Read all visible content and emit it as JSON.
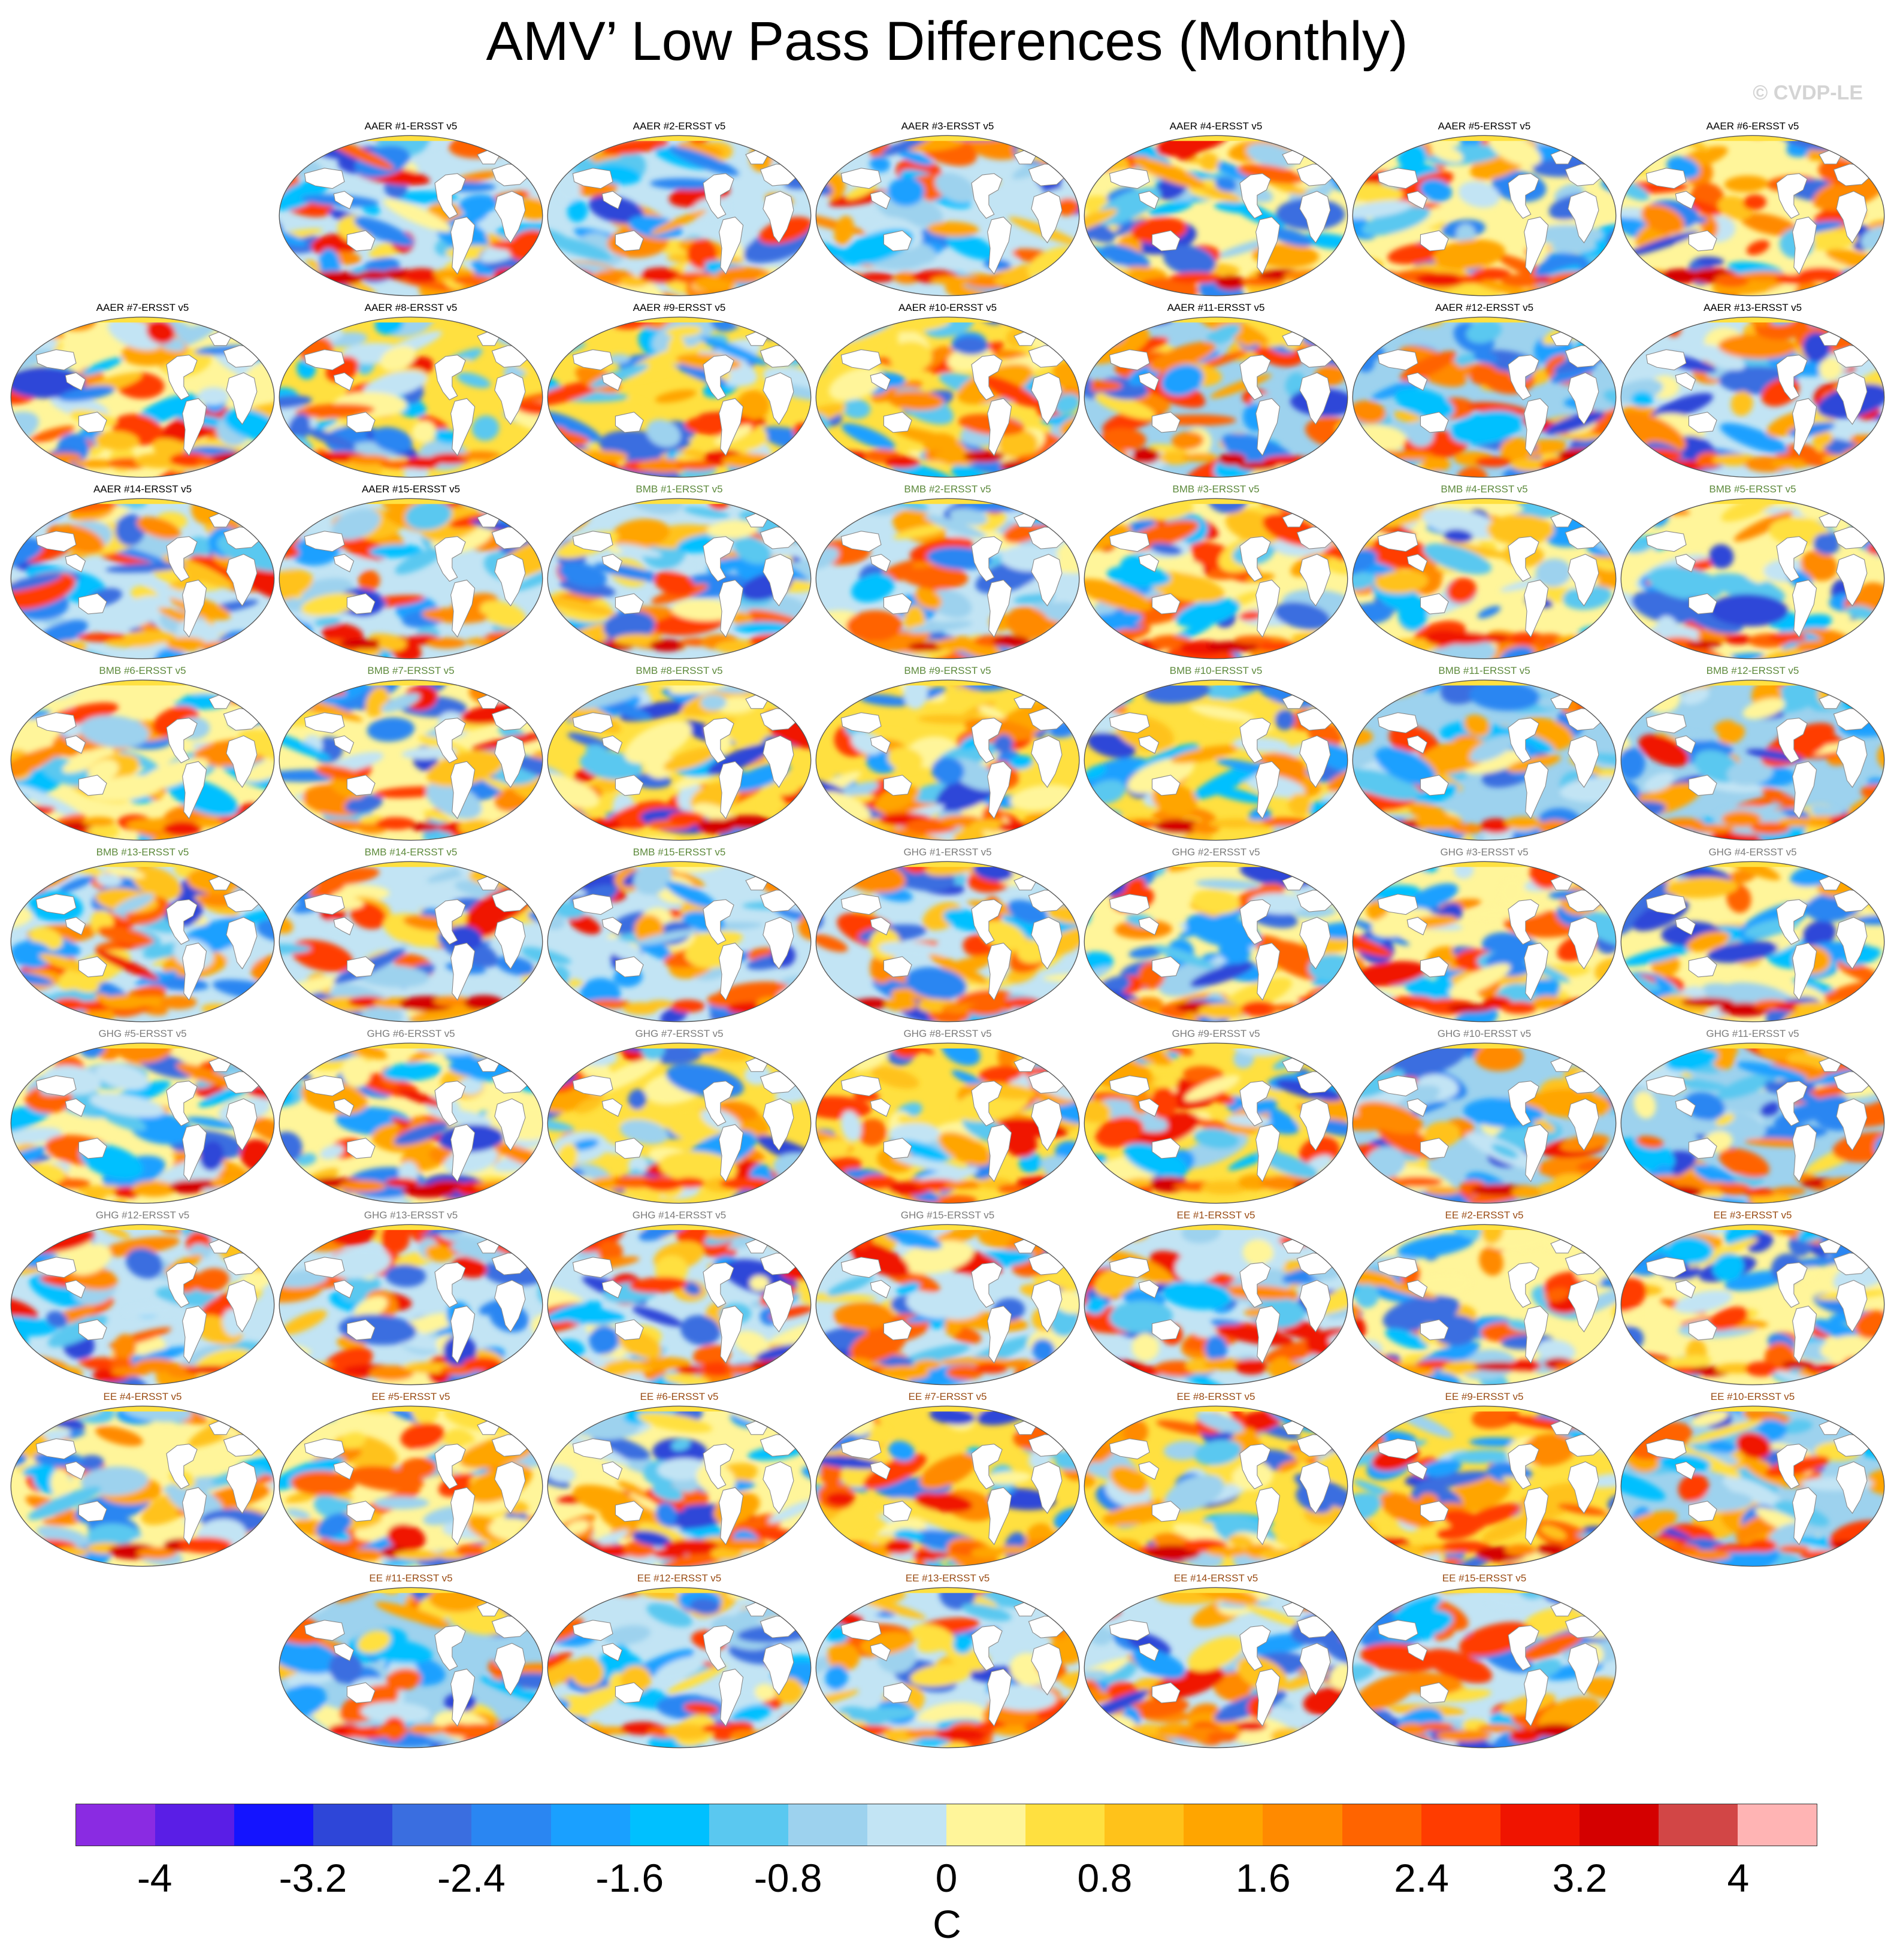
{
  "title": "AMV’ Low Pass Differences (Monthly)",
  "watermark": "© CVDP-LE",
  "panel_rows": [
    [
      null,
      "AAER #1-ERSST v5",
      "AAER #2-ERSST v5",
      "AAER #3-ERSST v5",
      "AAER #4-ERSST v5",
      "AAER #5-ERSST v5",
      "AAER #6-ERSST v5"
    ],
    [
      "AAER #7-ERSST v5",
      "AAER #8-ERSST v5",
      "AAER #9-ERSST v5",
      "AAER #10-ERSST v5",
      "AAER #11-ERSST v5",
      "AAER #12-ERSST v5",
      "AAER #13-ERSST v5"
    ],
    [
      "AAER #14-ERSST v5",
      "AAER #15-ERSST v5",
      "BMB #1-ERSST v5",
      "BMB #2-ERSST v5",
      "BMB #3-ERSST v5",
      "BMB #4-ERSST v5",
      "BMB #5-ERSST v5"
    ],
    [
      "BMB #6-ERSST v5",
      "BMB #7-ERSST v5",
      "BMB #8-ERSST v5",
      "BMB #9-ERSST v5",
      "BMB #10-ERSST v5",
      "BMB #11-ERSST v5",
      "BMB #12-ERSST v5"
    ],
    [
      "BMB #13-ERSST v5",
      "BMB #14-ERSST v5",
      "BMB #15-ERSST v5",
      "GHG #1-ERSST v5",
      "GHG #2-ERSST v5",
      "GHG #3-ERSST v5",
      "GHG #4-ERSST v5"
    ],
    [
      "GHG #5-ERSST v5",
      "GHG #6-ERSST v5",
      "GHG #7-ERSST v5",
      "GHG #8-ERSST v5",
      "GHG #9-ERSST v5",
      "GHG #10-ERSST v5",
      "GHG #11-ERSST v5"
    ],
    [
      "GHG #12-ERSST v5",
      "GHG #13-ERSST v5",
      "GHG #14-ERSST v5",
      "GHG #15-ERSST v5",
      "EE #1-ERSST v5",
      "EE #2-ERSST v5",
      "EE #3-ERSST v5"
    ],
    [
      "EE #4-ERSST v5",
      "EE #5-ERSST v5",
      "EE #6-ERSST v5",
      "EE #7-ERSST v5",
      "EE #8-ERSST v5",
      "EE #9-ERSST v5",
      "EE #10-ERSST v5"
    ],
    [
      null,
      "EE #11-ERSST v5",
      "EE #12-ERSST v5",
      "EE #13-ERSST v5",
      "EE #14-ERSST v5",
      "EE #15-ERSST v5",
      null
    ]
  ],
  "colorbar": {
    "colors": [
      "#8a2be2",
      "#5a1ee6",
      "#1414ff",
      "#2e46d8",
      "#3a6ee0",
      "#2a86f2",
      "#1aa0ff",
      "#00c0ff",
      "#5ac8f0",
      "#9dd2ee",
      "#c2e4f4",
      "#fff59a",
      "#ffe040",
      "#ffc21a",
      "#ffa500",
      "#ff8a00",
      "#ff6400",
      "#ff3c00",
      "#f01400",
      "#d40000",
      "#d24646",
      "#ffb4b4"
    ],
    "tick_labels": [
      "-4",
      "-3.2",
      "-2.4",
      "-1.6",
      "-0.8",
      "0",
      "0.8",
      "1.6",
      "2.4",
      "3.2",
      "4"
    ],
    "unit": "C",
    "range": [
      -4.4,
      4.4
    ]
  },
  "group_title_colors": {
    "AAER": "#2f6f88",
    "BMB": "#5d8a3c",
    "GHG": "#7c7c7c",
    "EE": "#9a4c14"
  }
}
